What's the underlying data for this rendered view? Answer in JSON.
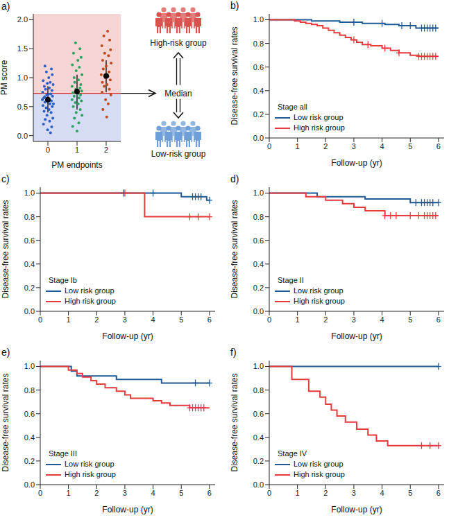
{
  "chart_data": [
    {
      "type": "scatter",
      "title": "a)",
      "x_label": "PM endpoints",
      "y_label": "PM score",
      "xlim": [
        -0.5,
        2.5
      ],
      "xticks": [
        0,
        1,
        2
      ],
      "ylim": [
        -0.1,
        2.1
      ],
      "yticks": [
        {
          "value": 0,
          "label": "0.0"
        },
        {
          "value": 0.5,
          "label": "0.5"
        },
        {
          "value": 1,
          "label": "1.0"
        },
        {
          "value": 1.5,
          "label": "1.5"
        },
        {
          "value": 2,
          "label": "2.0"
        }
      ],
      "median": 0.73,
      "median_color": "#e0282a",
      "annotations": {
        "median": "Median",
        "high": "High-risk group",
        "low": "Low-risk group"
      },
      "high_color": "#d9534f",
      "low_color": "#6f9fd8",
      "high_band_color": "#f6d5d5",
      "low_band_color": "#d5dcf3",
      "series": [
        {
          "color": "#2b5fc7",
          "x": [
            -0.1,
            0.12,
            -0.05,
            0.15,
            0.03,
            -0.16,
            0.08,
            -0.02,
            0.18,
            -0.12,
            0.05,
            -0.08,
            0.14,
            -0.18,
            0.1,
            -0.04,
            0.16,
            -0.14,
            0.02,
            0.12,
            -0.1,
            0.07,
            -0.17,
            0.15,
            -0.06,
            0.04,
            -0.13,
            0.11,
            -0.03,
            0.17,
            -0.09,
            0.06,
            -0.15,
            0.13,
            -0.01,
            0.09,
            0.19,
            -0.19,
            -0.11,
            0.01
          ],
          "values": [
            1.2,
            1.15,
            1.1,
            1.05,
            1.0,
            0.95,
            0.92,
            0.9,
            0.88,
            0.85,
            0.82,
            0.8,
            0.78,
            0.75,
            0.72,
            0.7,
            0.68,
            0.65,
            0.63,
            0.6,
            0.58,
            0.55,
            0.52,
            0.5,
            0.48,
            0.45,
            0.42,
            0.4,
            0.35,
            0.3,
            0.28,
            0.25,
            0.2,
            0.15,
            0.1,
            0.05,
            0.55,
            0.62,
            0.67,
            0.71
          ]
        },
        {
          "color": "#2ca25f",
          "x": [
            0.95,
            1.1,
            0.88,
            1.14,
            1.03,
            0.84,
            1.08,
            0.97,
            1.17,
            0.9,
            1.05,
            0.92,
            1.13,
            0.83,
            1.1,
            0.96,
            1.16,
            0.86,
            1.02,
            1.12,
            0.9,
            1.07,
            0.83,
            1.15,
            0.94,
            1.04,
            0.87,
            1.11,
            0.97,
            1.17,
            0.91,
            1.06,
            0.85,
            1.0
          ],
          "values": [
            1.6,
            1.5,
            1.42,
            1.35,
            1.3,
            1.22,
            1.18,
            1.12,
            1.05,
            1.0,
            0.96,
            0.92,
            0.88,
            0.85,
            0.82,
            0.8,
            0.77,
            0.74,
            0.72,
            0.7,
            0.68,
            0.65,
            0.62,
            0.6,
            0.57,
            0.55,
            0.5,
            0.45,
            0.4,
            0.35,
            0.3,
            0.22,
            0.16,
            0.08
          ]
        },
        {
          "color": "#c0471b",
          "x": [
            2.05,
            1.92,
            2.12,
            1.85,
            2.15,
            1.95,
            2.08,
            1.88,
            2.17,
            2.0,
            1.9,
            2.1,
            1.83,
            2.06,
            1.97,
            2.14,
            1.87,
            2.03,
            1.93,
            2.11,
            1.86,
            2.16,
            1.98,
            2.07,
            1.89,
            2.02
          ],
          "values": [
            1.8,
            1.72,
            1.65,
            1.55,
            1.48,
            1.42,
            1.38,
            1.3,
            1.25,
            1.2,
            1.15,
            1.1,
            1.05,
            1.02,
            1.0,
            0.96,
            0.92,
            0.88,
            0.85,
            0.8,
            0.75,
            0.7,
            0.62,
            0.55,
            0.45,
            0.32
          ]
        }
      ],
      "means": {
        "color": "#000000",
        "x": [
          0,
          1,
          2
        ],
        "values": [
          0.62,
          0.76,
          1.03
        ],
        "lower": [
          0.4,
          0.45,
          0.75
        ],
        "upper": [
          0.85,
          1.05,
          1.3
        ]
      }
    },
    {
      "type": "line",
      "title": "b)",
      "annotation": "Stage all",
      "x_label": "Follow-up (yr)",
      "y_label": "Disease-free survival rates",
      "line_style": "step",
      "marker": "plus",
      "legend": "lower left",
      "xlim": [
        0,
        6.2
      ],
      "xticks": [
        0,
        1,
        2,
        3,
        4,
        5,
        6
      ],
      "ylim": [
        0,
        1.05
      ],
      "yticks": [
        {
          "value": 0,
          "label": "0.0"
        },
        {
          "value": 0.2,
          "label": "0.2"
        },
        {
          "value": 0.4,
          "label": "0.4"
        },
        {
          "value": 0.6,
          "label": "0.6"
        },
        {
          "value": 0.8,
          "label": "0.8"
        },
        {
          "value": 1,
          "label": "1.0"
        }
      ],
      "series": [
        {
          "name": "Low risk group",
          "color": "#1f5a96",
          "x": [
            0,
            1.5,
            2.5,
            3.3,
            4.1,
            4.6,
            5.2,
            6.0
          ],
          "values": [
            1.0,
            0.99,
            0.98,
            0.97,
            0.96,
            0.95,
            0.93,
            0.93
          ],
          "censored_x": [
            3.0,
            4.0,
            4.7,
            5.0,
            5.4,
            5.5,
            5.6,
            5.7,
            5.8,
            5.9
          ],
          "censored_values": [
            0.98,
            0.97,
            0.95,
            0.95,
            0.93,
            0.93,
            0.93,
            0.93,
            0.93,
            0.93
          ]
        },
        {
          "name": "High risk group",
          "color": "#e8393b",
          "x": [
            0,
            0.9,
            1.1,
            1.3,
            1.5,
            1.7,
            1.9,
            2.1,
            2.3,
            2.5,
            2.7,
            2.9,
            3.1,
            3.3,
            3.6,
            4.0,
            4.3,
            4.6,
            5.0,
            5.3,
            6.0
          ],
          "values": [
            1.0,
            0.99,
            0.98,
            0.97,
            0.96,
            0.95,
            0.93,
            0.91,
            0.89,
            0.87,
            0.85,
            0.83,
            0.81,
            0.79,
            0.78,
            0.76,
            0.74,
            0.72,
            0.7,
            0.69,
            0.69
          ],
          "censored_x": [
            3.0,
            3.5,
            4.1,
            4.6,
            5.3,
            5.4,
            5.5,
            5.6,
            5.7,
            5.8,
            5.9
          ],
          "censored_values": [
            0.83,
            0.79,
            0.76,
            0.72,
            0.69,
            0.69,
            0.69,
            0.69,
            0.69,
            0.69,
            0.69
          ]
        }
      ]
    },
    {
      "type": "line",
      "title": "c)",
      "annotation": "Stage Ib",
      "x_label": "Follow-up (yr)",
      "y_label": "Disease-free survival rates",
      "line_style": "step",
      "marker": "plus",
      "legend": "lower left",
      "xlim": [
        0,
        6.2
      ],
      "xticks": [
        0,
        1,
        2,
        3,
        4,
        5,
        6
      ],
      "ylim": [
        0,
        1.05
      ],
      "yticks": [
        {
          "value": 0,
          "label": "0.0"
        },
        {
          "value": 0.2,
          "label": "0.2"
        },
        {
          "value": 0.4,
          "label": "0.4"
        },
        {
          "value": 0.6,
          "label": "0.6"
        },
        {
          "value": 0.8,
          "label": "0.8"
        },
        {
          "value": 1,
          "label": "1.0"
        }
      ],
      "series": [
        {
          "name": "Low risk group",
          "color": "#1f5a96",
          "x": [
            0,
            5.0,
            5.9,
            6.0
          ],
          "values": [
            1.0,
            0.97,
            0.94,
            0.94
          ],
          "censored_x": [
            2.95,
            4.0,
            5.4,
            5.5,
            5.6,
            5.7,
            6.0
          ],
          "censored_values": [
            1.0,
            1.0,
            0.97,
            0.97,
            0.97,
            0.97,
            0.94
          ]
        },
        {
          "name": "High risk group",
          "color": "#e8393b",
          "x": [
            0,
            3.7,
            6.0
          ],
          "values": [
            1.0,
            0.8,
            0.8
          ],
          "censored_x": [
            3.0,
            5.3,
            5.6,
            6.0
          ],
          "censored_values": [
            1.0,
            0.8,
            0.8,
            0.8
          ]
        }
      ]
    },
    {
      "type": "line",
      "title": "d)",
      "annotation": "Stage II",
      "x_label": "Follow-up (yr)",
      "y_label": "Disease-free survival rates",
      "line_style": "step",
      "marker": "plus",
      "legend": "lower left",
      "xlim": [
        0,
        6.2
      ],
      "xticks": [
        0,
        1,
        2,
        3,
        4,
        5,
        6
      ],
      "ylim": [
        0,
        1.05
      ],
      "yticks": [
        {
          "value": 0,
          "label": "0.0"
        },
        {
          "value": 0.2,
          "label": "0.2"
        },
        {
          "value": 0.4,
          "label": "0.4"
        },
        {
          "value": 0.6,
          "label": "0.6"
        },
        {
          "value": 0.8,
          "label": "0.8"
        },
        {
          "value": 1,
          "label": "1.0"
        }
      ],
      "series": [
        {
          "name": "Low risk group",
          "color": "#1f5a96",
          "x": [
            0,
            1.7,
            3.4,
            5.0,
            6.0
          ],
          "values": [
            1.0,
            0.97,
            0.95,
            0.92,
            0.92
          ],
          "censored_x": [
            5.2,
            5.4,
            5.5,
            5.6,
            5.7,
            5.8,
            6.0
          ],
          "censored_values": [
            0.92,
            0.92,
            0.92,
            0.92,
            0.92,
            0.92,
            0.92
          ]
        },
        {
          "name": "High risk group",
          "color": "#e8393b",
          "x": [
            0,
            1.3,
            2.0,
            2.6,
            3.0,
            3.4,
            4.1,
            6.0
          ],
          "values": [
            1.0,
            0.97,
            0.94,
            0.91,
            0.88,
            0.85,
            0.81,
            0.81
          ],
          "censored_x": [
            4.1,
            4.3,
            4.5,
            5.0,
            5.3,
            5.5,
            5.6,
            5.7,
            5.8,
            5.9
          ],
          "censored_values": [
            0.81,
            0.81,
            0.81,
            0.81,
            0.81,
            0.81,
            0.81,
            0.81,
            0.81,
            0.81
          ]
        }
      ]
    },
    {
      "type": "line",
      "title": "e)",
      "annotation": "Stage III",
      "x_label": "Follow-up (yr)",
      "y_label": "Disease-free survival rates",
      "line_style": "step",
      "marker": "plus",
      "legend": "lower left",
      "xlim": [
        0,
        6.2
      ],
      "xticks": [
        0,
        1,
        2,
        3,
        4,
        5,
        6
      ],
      "ylim": [
        0,
        1.05
      ],
      "yticks": [
        {
          "value": 0,
          "label": "0.0"
        },
        {
          "value": 0.2,
          "label": "0.2"
        },
        {
          "value": 0.4,
          "label": "0.4"
        },
        {
          "value": 0.6,
          "label": "0.6"
        },
        {
          "value": 0.8,
          "label": "0.8"
        },
        {
          "value": 1,
          "label": "1.0"
        }
      ],
      "series": [
        {
          "name": "Low risk group",
          "color": "#1f5a96",
          "x": [
            0,
            1.1,
            1.3,
            2.7,
            4.3,
            6.0
          ],
          "values": [
            1.0,
            0.96,
            0.92,
            0.89,
            0.86,
            0.86
          ],
          "censored_x": [
            5.5,
            6.0
          ],
          "censored_values": [
            0.86,
            0.86
          ]
        },
        {
          "name": "High risk group",
          "color": "#e8393b",
          "x": [
            0,
            1.0,
            1.3,
            1.5,
            1.8,
            2.0,
            2.3,
            2.7,
            3.0,
            3.2,
            4.0,
            4.3,
            4.6,
            5.3,
            6.0
          ],
          "values": [
            1.0,
            0.97,
            0.94,
            0.91,
            0.88,
            0.85,
            0.82,
            0.79,
            0.76,
            0.73,
            0.71,
            0.69,
            0.67,
            0.65,
            0.65
          ],
          "censored_x": [
            5.3,
            5.4,
            5.5,
            5.6,
            5.7,
            5.8
          ],
          "censored_values": [
            0.65,
            0.65,
            0.65,
            0.65,
            0.65,
            0.65
          ]
        }
      ]
    },
    {
      "type": "line",
      "title": "f)",
      "annotation": "Stage IV",
      "x_label": "Follow-up (yr)",
      "y_label": "Disease-free survival rates",
      "line_style": "step",
      "marker": "plus",
      "legend": "lower left",
      "xlim": [
        0,
        6.2
      ],
      "xticks": [
        0,
        1,
        2,
        3,
        4,
        5,
        6
      ],
      "ylim": [
        0,
        1.05
      ],
      "yticks": [
        {
          "value": 0,
          "label": "0.0"
        },
        {
          "value": 0.2,
          "label": "0.2"
        },
        {
          "value": 0.4,
          "label": "0.4"
        },
        {
          "value": 0.6,
          "label": "0.6"
        },
        {
          "value": 0.8,
          "label": "0.8"
        },
        {
          "value": 1,
          "label": "1.0"
        }
      ],
      "series": [
        {
          "name": "Low risk group",
          "color": "#1f5a96",
          "x": [
            0,
            6.0
          ],
          "values": [
            1.0,
            1.0
          ],
          "censored_x": [
            6.0
          ],
          "censored_values": [
            1.0
          ]
        },
        {
          "name": "High risk group",
          "color": "#e8393b",
          "x": [
            0,
            0.8,
            1.4,
            1.8,
            2.0,
            2.2,
            2.4,
            2.7,
            3.1,
            3.5,
            3.8,
            4.2,
            6.0
          ],
          "values": [
            1.0,
            0.89,
            0.79,
            0.74,
            0.68,
            0.63,
            0.58,
            0.53,
            0.47,
            0.42,
            0.37,
            0.33,
            0.33
          ],
          "censored_x": [
            5.4,
            5.7,
            6.0
          ],
          "censored_values": [
            0.33,
            0.33,
            0.33
          ]
        }
      ]
    }
  ]
}
